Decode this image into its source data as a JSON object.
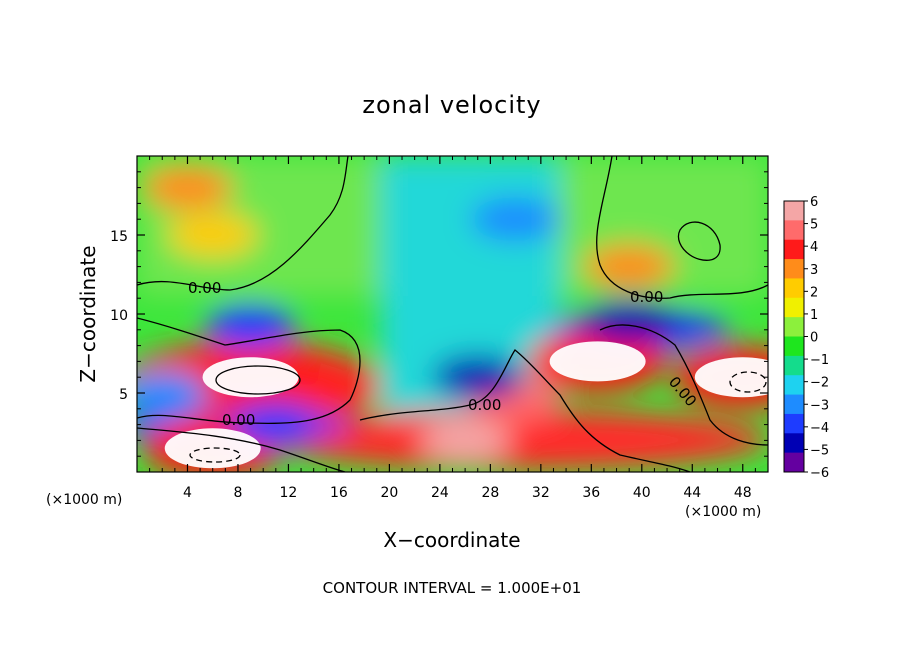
{
  "chart_data": {
    "type": "heatmap",
    "title": "zonal velocity",
    "xlabel": "X−coordinate",
    "ylabel": "Z−coordinate",
    "x_unit_left": "(×1000 m)",
    "x_unit_right": "(×1000 m)",
    "footer": "CONTOUR INTERVAL = 1.000E+01",
    "xlim": [
      0,
      50
    ],
    "ylim": [
      0,
      20
    ],
    "x_ticks": [
      4,
      8,
      12,
      16,
      20,
      24,
      28,
      32,
      36,
      40,
      44,
      48
    ],
    "x_tick_labels": [
      "4",
      "8",
      "12",
      "16",
      "20",
      "24",
      "28",
      "32",
      "36",
      "40",
      "44",
      "48"
    ],
    "y_ticks": [
      5,
      10,
      15
    ],
    "y_tick_labels": [
      "5",
      "10",
      "15"
    ],
    "colorbar": {
      "min": -6,
      "max": 6,
      "labels": [
        "6",
        "5",
        "4",
        "3",
        "2",
        "1",
        "0",
        "−1",
        "−2",
        "−3",
        "−4",
        "−5",
        "−6"
      ],
      "colors": [
        "#f4a6a6",
        "#ff6b6b",
        "#ff1a1a",
        "#ff8c1a",
        "#ffcc00",
        "#f0f000",
        "#8cf03c",
        "#1ee61e",
        "#14dc8c",
        "#1ed2f0",
        "#1e8cff",
        "#1e3cff",
        "#0000b4",
        "#6400a0"
      ]
    },
    "contour_labels": [
      "0.00",
      "0.00",
      "0.00",
      "0.00",
      "0.00"
    ],
    "features": [
      {
        "x": 9,
        "z": 6,
        "value": 7
      },
      {
        "x": 6,
        "z": 1.5,
        "value": 7
      },
      {
        "x": 26,
        "z": 2,
        "value": 6
      },
      {
        "x": 36.5,
        "z": 7,
        "value": 7
      },
      {
        "x": 48,
        "z": 6,
        "value": 7
      },
      {
        "x": 30,
        "z": 4.5,
        "value": 5
      },
      {
        "x": 4,
        "z": 18,
        "value": 3
      },
      {
        "x": 6,
        "z": 15,
        "value": 2.5
      },
      {
        "x": 39,
        "z": 13,
        "value": 3
      },
      {
        "x": 30,
        "z": 16,
        "value": -3
      },
      {
        "x": 27,
        "z": 6,
        "value": -5
      },
      {
        "x": 39,
        "z": 9.5,
        "value": -5
      },
      {
        "x": 9,
        "z": 9.2,
        "value": -4
      },
      {
        "x": 11,
        "z": 3,
        "value": -4
      },
      {
        "x": 2,
        "z": 5,
        "value": -3
      }
    ]
  }
}
